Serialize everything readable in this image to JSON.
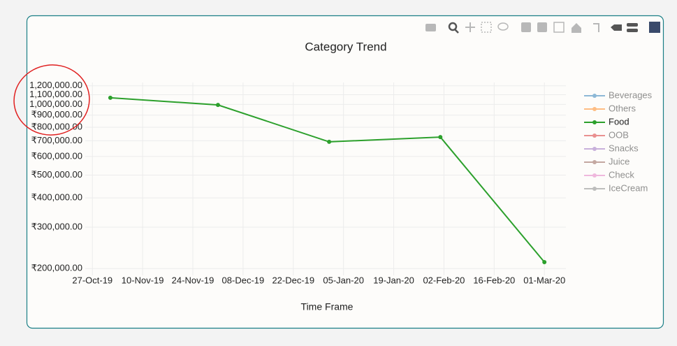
{
  "chart_data": {
    "type": "line",
    "title": "Category Trend",
    "x_label": "Time Frame",
    "x": [
      "2019-11-01",
      "2019-12-01",
      "2020-01-01",
      "2020-02-01",
      "2020-03-01"
    ],
    "xlim": [
      "2019-10-25",
      "2020-03-07"
    ],
    "xticks": [
      {
        "value": "2019-10-27",
        "label": "27-Oct-19"
      },
      {
        "value": "2019-11-10",
        "label": "10-Nov-19"
      },
      {
        "value": "2019-11-24",
        "label": "24-Nov-19"
      },
      {
        "value": "2019-12-08",
        "label": "08-Dec-19"
      },
      {
        "value": "2019-12-22",
        "label": "22-Dec-19"
      },
      {
        "value": "2020-01-05",
        "label": "05-Jan-20"
      },
      {
        "value": "2020-01-19",
        "label": "19-Jan-20"
      },
      {
        "value": "2020-02-02",
        "label": "02-Feb-20"
      },
      {
        "value": "2020-02-16",
        "label": "16-Feb-20"
      },
      {
        "value": "2020-03-01",
        "label": "01-Mar-20"
      }
    ],
    "yscale": "log",
    "ylim": [
      187000,
      1240000
    ],
    "yticks": [
      {
        "value": 200000,
        "label": "₹200,000.00"
      },
      {
        "value": 300000,
        "label": "₹300,000.00"
      },
      {
        "value": 400000,
        "label": "₹400,000.00"
      },
      {
        "value": 500000,
        "label": "₹500,000.00"
      },
      {
        "value": 600000,
        "label": "₹600,000.00"
      },
      {
        "value": 700000,
        "label": "₹700,000.00"
      },
      {
        "value": 800000,
        "label": "₹800,000.00"
      },
      {
        "value": 900000,
        "label": "₹900,000.00"
      },
      {
        "value": 1000000,
        "label": "1,000,000.00"
      },
      {
        "value": 1100000,
        "label": "1,100,000.00"
      },
      {
        "value": 1200000,
        "label": "1,200,000.00"
      }
    ],
    "grid": true,
    "legend": "right",
    "series": [
      {
        "name": "Beverages",
        "color": "#1f77b4",
        "visible": false,
        "values": [
          null,
          null,
          null,
          null,
          null
        ]
      },
      {
        "name": "Others",
        "color": "#ff7f0e",
        "visible": false,
        "values": [
          null,
          null,
          null,
          null,
          null
        ]
      },
      {
        "name": "Food",
        "color": "#2ca02c",
        "visible": true,
        "values": [
          1067000,
          995000,
          693000,
          726000,
          213000
        ]
      },
      {
        "name": "OOB",
        "color": "#d62728",
        "visible": false,
        "values": [
          null,
          null,
          null,
          null,
          null
        ]
      },
      {
        "name": "Snacks",
        "color": "#9467bd",
        "visible": false,
        "values": [
          null,
          null,
          null,
          null,
          null
        ]
      },
      {
        "name": "Juice",
        "color": "#8c564b",
        "visible": false,
        "values": [
          null,
          null,
          null,
          null,
          null
        ]
      },
      {
        "name": "Check",
        "color": "#e377c2",
        "visible": false,
        "values": [
          null,
          null,
          null,
          null,
          null
        ]
      },
      {
        "name": "IceCream",
        "color": "#7f7f7f",
        "visible": false,
        "values": [
          null,
          null,
          null,
          null,
          null
        ]
      }
    ]
  }
}
